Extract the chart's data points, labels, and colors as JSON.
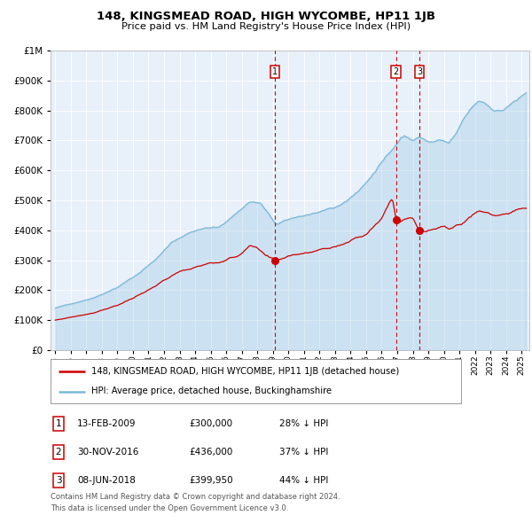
{
  "title": "148, KINGSMEAD ROAD, HIGH WYCOMBE, HP11 1JB",
  "subtitle": "Price paid vs. HM Land Registry's House Price Index (HPI)",
  "legend_line1": "148, KINGSMEAD ROAD, HIGH WYCOMBE, HP11 1JB (detached house)",
  "legend_line2": "HPI: Average price, detached house, Buckinghamshire",
  "footer1": "Contains HM Land Registry data © Crown copyright and database right 2024.",
  "footer2": "This data is licensed under the Open Government Licence v3.0.",
  "transactions": [
    {
      "num": 1,
      "date": "13-FEB-2009",
      "date_x": 2009.12,
      "price": 300000,
      "pct": "28%",
      "dir": "↓"
    },
    {
      "num": 2,
      "date": "30-NOV-2016",
      "date_x": 2016.92,
      "price": 436000,
      "pct": "37%",
      "dir": "↓"
    },
    {
      "num": 3,
      "date": "08-JUN-2018",
      "date_x": 2018.44,
      "price": 399950,
      "pct": "44%",
      "dir": "↓"
    }
  ],
  "hpi_color": "#7ab8d9",
  "price_color": "#cc0000",
  "plot_bg": "#e8f0fa",
  "vline_color": "#cc0000",
  "ylim": [
    0,
    1000000
  ],
  "xlim_start": 1994.7,
  "xlim_end": 2025.5
}
